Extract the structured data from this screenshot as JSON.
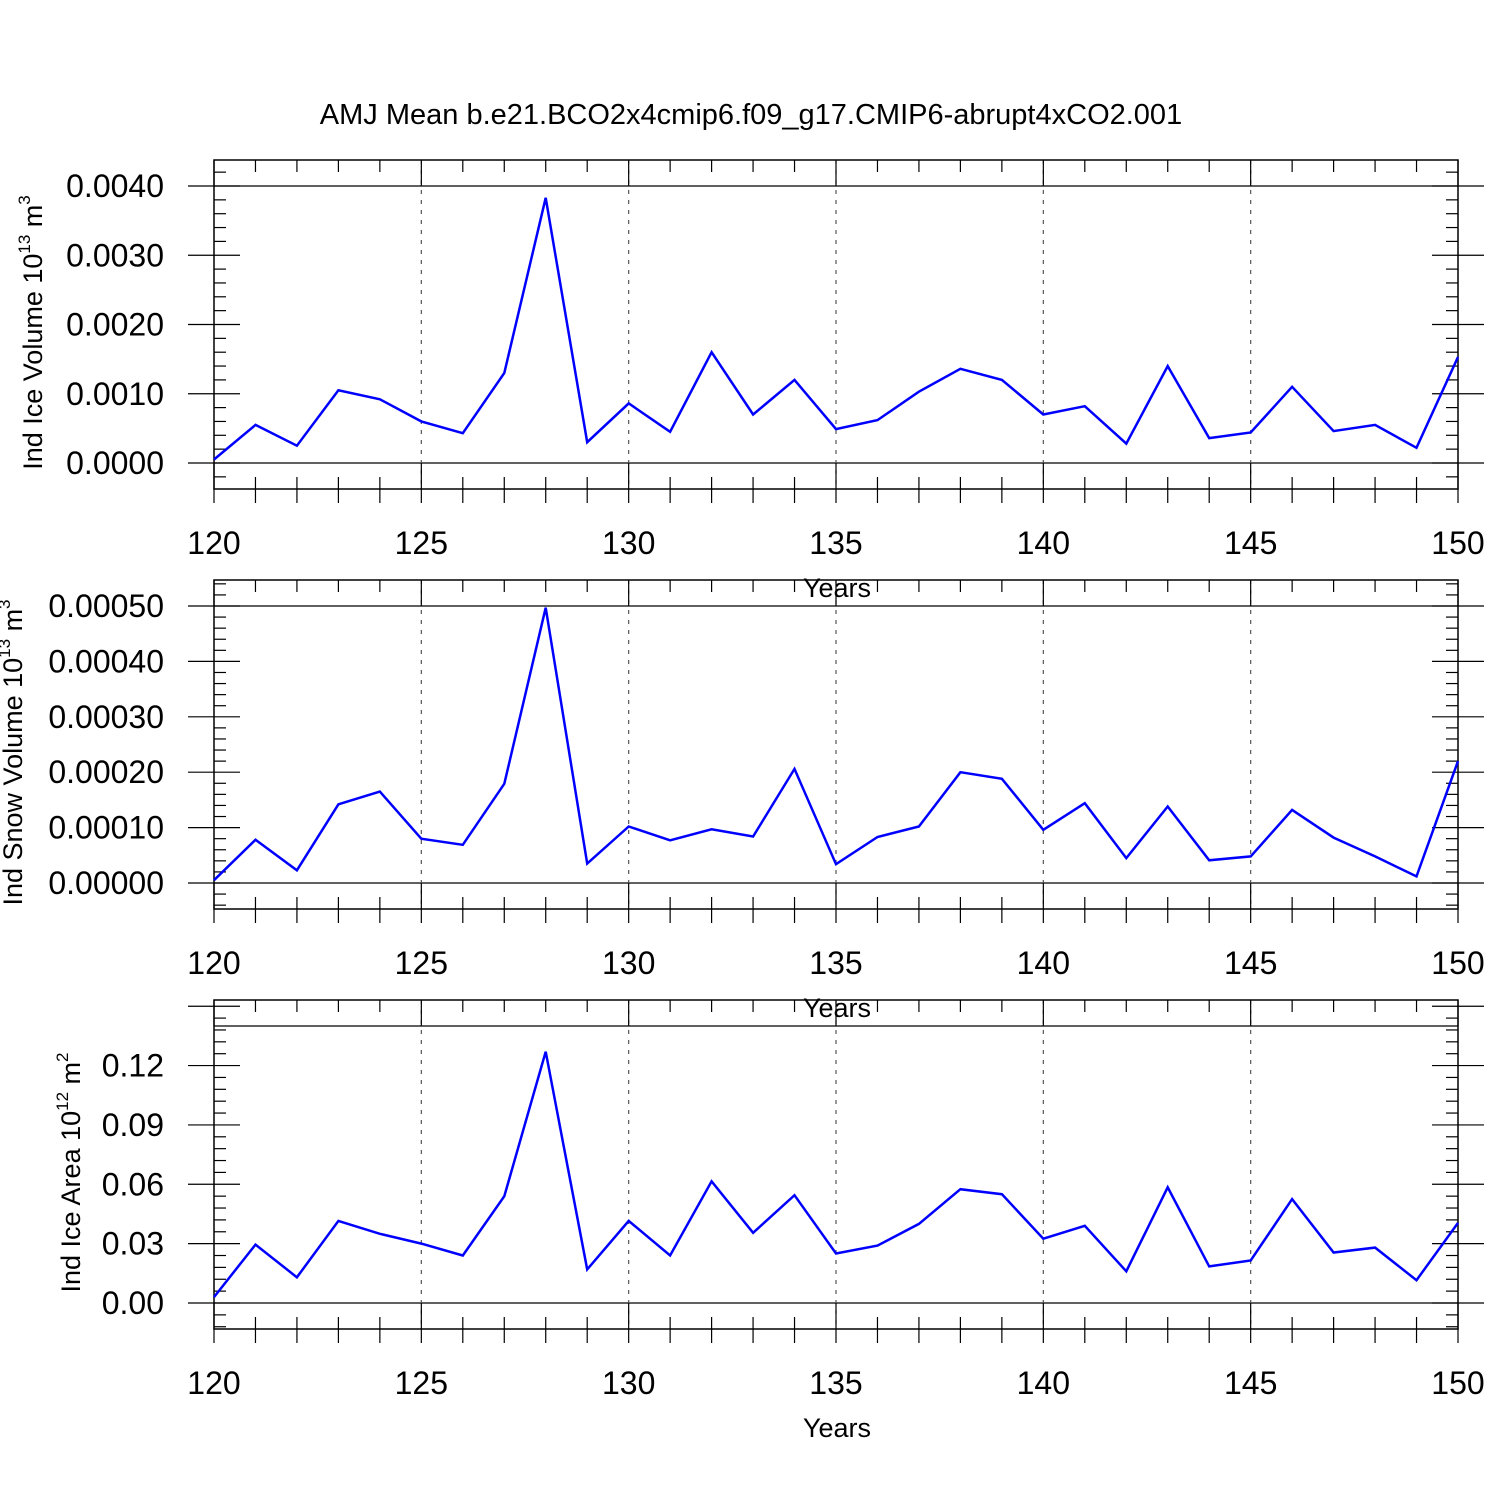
{
  "figure": {
    "title": "AMJ Mean b.e21.BCO2x4cmip6.f09_g17.CMIP6-abrupt4xCO2.001"
  },
  "chart_data": [
    {
      "type": "line",
      "title": "",
      "xlabel": "Years",
      "ylabel": "Ind Ice Volume 10",
      "ylabel_exp": "13",
      "ylabel_unit": "m",
      "ylabel_unit_exp": "3",
      "xlim": [
        120,
        150
      ],
      "ylim": [
        0,
        0.004
      ],
      "x_ticks": [
        120,
        125,
        130,
        135,
        140,
        145,
        150
      ],
      "y_ticks": [
        "0.0000",
        "0.0010",
        "0.0020",
        "0.0030",
        "0.0040"
      ],
      "y_tick_values": [
        0,
        0.001,
        0.002,
        0.003,
        0.004
      ],
      "grid": "x-dashed",
      "color": "#0000ff",
      "x": [
        120,
        121,
        122,
        123,
        124,
        125,
        126,
        127,
        128,
        129,
        130,
        131,
        132,
        133,
        134,
        135,
        136,
        137,
        138,
        139,
        140,
        141,
        142,
        143,
        144,
        145,
        146,
        147,
        148,
        149,
        150
      ],
      "values": [
        5e-05,
        0.00055,
        0.00025,
        0.00105,
        0.00092,
        0.0006,
        0.00043,
        0.0013,
        0.00383,
        0.0003,
        0.00086,
        0.00045,
        0.0016,
        0.0007,
        0.0012,
        0.00049,
        0.00062,
        0.00103,
        0.00136,
        0.0012,
        0.0007,
        0.00082,
        0.00028,
        0.0014,
        0.00036,
        0.00044,
        0.0011,
        0.00046,
        0.00055,
        0.00022,
        0.00153
      ]
    },
    {
      "type": "line",
      "title": "",
      "xlabel": "Years",
      "ylabel": "Ind Snow Volume 10",
      "ylabel_exp": "13",
      "ylabel_unit": "m",
      "ylabel_unit_exp": "3",
      "xlim": [
        120,
        150
      ],
      "ylim": [
        0,
        0.0005
      ],
      "x_ticks": [
        120,
        125,
        130,
        135,
        140,
        145,
        150
      ],
      "y_ticks": [
        "0.00000",
        "0.00010",
        "0.00020",
        "0.00030",
        "0.00040",
        "0.00050"
      ],
      "y_tick_values": [
        0,
        0.0001,
        0.0002,
        0.0003,
        0.0004,
        0.0005
      ],
      "grid": "x-dashed",
      "color": "#0000ff",
      "x": [
        120,
        121,
        122,
        123,
        124,
        125,
        126,
        127,
        128,
        129,
        130,
        131,
        132,
        133,
        134,
        135,
        136,
        137,
        138,
        139,
        140,
        141,
        142,
        143,
        144,
        145,
        146,
        147,
        148,
        149,
        150
      ],
      "values": [
        5e-06,
        7.8e-05,
        2.3e-05,
        0.000142,
        0.000165,
        8e-05,
        6.9e-05,
        0.000179,
        0.000497,
        3.5e-05,
        0.000102,
        7.7e-05,
        9.7e-05,
        8.4e-05,
        0.000206,
        3.4e-05,
        8.3e-05,
        0.000102,
        0.0002,
        0.000188,
        9.6e-05,
        0.000144,
        4.5e-05,
        0.000138,
        4.1e-05,
        4.8e-05,
        0.000132,
        8.2e-05,
        4.8e-05,
        1.2e-05,
        0.00022
      ]
    },
    {
      "type": "line",
      "title": "",
      "xlabel": "Years",
      "ylabel": "Ind Ice Area 10",
      "ylabel_exp": "12",
      "ylabel_unit": "m",
      "ylabel_unit_exp": "2",
      "xlim": [
        120,
        150
      ],
      "ylim": [
        0,
        0.14
      ],
      "x_ticks": [
        120,
        125,
        130,
        135,
        140,
        145,
        150
      ],
      "y_ticks": [
        "0.00",
        "0.03",
        "0.06",
        "0.09",
        "0.12"
      ],
      "y_tick_values": [
        0,
        0.03,
        0.06,
        0.09,
        0.12
      ],
      "grid": "x-dashed",
      "color": "#0000ff",
      "x": [
        120,
        121,
        122,
        123,
        124,
        125,
        126,
        127,
        128,
        129,
        130,
        131,
        132,
        133,
        134,
        135,
        136,
        137,
        138,
        139,
        140,
        141,
        142,
        143,
        144,
        145,
        146,
        147,
        148,
        149,
        150
      ],
      "values": [
        0.003,
        0.0295,
        0.013,
        0.0415,
        0.035,
        0.03,
        0.024,
        0.054,
        0.127,
        0.017,
        0.0415,
        0.024,
        0.0615,
        0.0355,
        0.0545,
        0.025,
        0.029,
        0.04,
        0.0575,
        0.055,
        0.0325,
        0.039,
        0.016,
        0.0585,
        0.0185,
        0.0215,
        0.0525,
        0.0255,
        0.028,
        0.0115,
        0.0405
      ]
    }
  ]
}
